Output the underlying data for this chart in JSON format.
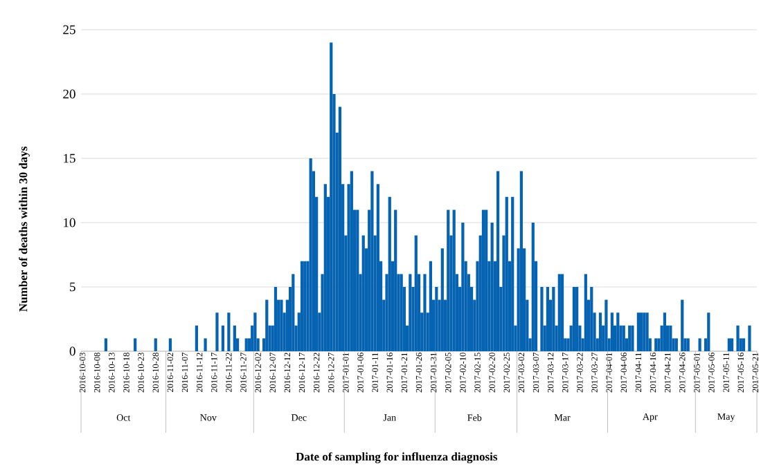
{
  "chart_data": {
    "type": "bar",
    "xlabel": "Date of sampling for influenza diagnosis",
    "ylabel": "Number of deaths within 30 days",
    "x": [
      "2016-10-03",
      "2016-10-04",
      "2016-10-05",
      "2016-10-06",
      "2016-10-07",
      "2016-10-08",
      "2016-10-09",
      "2016-10-10",
      "2016-10-11",
      "2016-10-12",
      "2016-10-13",
      "2016-10-14",
      "2016-10-15",
      "2016-10-16",
      "2016-10-17",
      "2016-10-18",
      "2016-10-19",
      "2016-10-20",
      "2016-10-21",
      "2016-10-22",
      "2016-10-23",
      "2016-10-24",
      "2016-10-25",
      "2016-10-26",
      "2016-10-27",
      "2016-10-28",
      "2016-10-29",
      "2016-10-30",
      "2016-10-31",
      "2016-11-01",
      "2016-11-02",
      "2016-11-03",
      "2016-11-04",
      "2016-11-05",
      "2016-11-06",
      "2016-11-07",
      "2016-11-08",
      "2016-11-09",
      "2016-11-10",
      "2016-11-11",
      "2016-11-12",
      "2016-11-13",
      "2016-11-14",
      "2016-11-15",
      "2016-11-16",
      "2016-11-17",
      "2016-11-18",
      "2016-11-19",
      "2016-11-20",
      "2016-11-21",
      "2016-11-22",
      "2016-11-23",
      "2016-11-24",
      "2016-11-25",
      "2016-11-26",
      "2016-11-27",
      "2016-11-28",
      "2016-11-29",
      "2016-11-30",
      "2016-12-01",
      "2016-12-02",
      "2016-12-03",
      "2016-12-04",
      "2016-12-05",
      "2016-12-06",
      "2016-12-07",
      "2016-12-08",
      "2016-12-09",
      "2016-12-10",
      "2016-12-11",
      "2016-12-12",
      "2016-12-13",
      "2016-12-14",
      "2016-12-15",
      "2016-12-16",
      "2016-12-17",
      "2016-12-18",
      "2016-12-19",
      "2016-12-20",
      "2016-12-21",
      "2016-12-22",
      "2016-12-23",
      "2016-12-24",
      "2016-12-25",
      "2016-12-26",
      "2016-12-27",
      "2016-12-28",
      "2016-12-29",
      "2016-12-30",
      "2016-12-31",
      "2017-01-01",
      "2017-01-02",
      "2017-01-03",
      "2017-01-04",
      "2017-01-05",
      "2017-01-06",
      "2017-01-07",
      "2017-01-08",
      "2017-01-09",
      "2017-01-10",
      "2017-01-11",
      "2017-01-12",
      "2017-01-13",
      "2017-01-14",
      "2017-01-15",
      "2017-01-16",
      "2017-01-17",
      "2017-01-18",
      "2017-01-19",
      "2017-01-20",
      "2017-01-21",
      "2017-01-22",
      "2017-01-23",
      "2017-01-24",
      "2017-01-25",
      "2017-01-26",
      "2017-01-27",
      "2017-01-28",
      "2017-01-29",
      "2017-01-30",
      "2017-01-31",
      "2017-02-01",
      "2017-02-02",
      "2017-02-03",
      "2017-02-04",
      "2017-02-05",
      "2017-02-06",
      "2017-02-07",
      "2017-02-08",
      "2017-02-09",
      "2017-02-10",
      "2017-02-11",
      "2017-02-12",
      "2017-02-13",
      "2017-02-14",
      "2017-02-15",
      "2017-02-16",
      "2017-02-17",
      "2017-02-18",
      "2017-02-19",
      "2017-02-20",
      "2017-02-21",
      "2017-02-22",
      "2017-02-23",
      "2017-02-24",
      "2017-02-25",
      "2017-02-26",
      "2017-02-27",
      "2017-02-28",
      "2017-03-01",
      "2017-03-02",
      "2017-03-03",
      "2017-03-04",
      "2017-03-05",
      "2017-03-06",
      "2017-03-07",
      "2017-03-08",
      "2017-03-09",
      "2017-03-10",
      "2017-03-11",
      "2017-03-12",
      "2017-03-13",
      "2017-03-14",
      "2017-03-15",
      "2017-03-16",
      "2017-03-17",
      "2017-03-18",
      "2017-03-19",
      "2017-03-20",
      "2017-03-21",
      "2017-03-22",
      "2017-03-23",
      "2017-03-24",
      "2017-03-25",
      "2017-03-26",
      "2017-03-27",
      "2017-03-28",
      "2017-03-29",
      "2017-03-30",
      "2017-03-31",
      "2017-04-01",
      "2017-04-02",
      "2017-04-03",
      "2017-04-04",
      "2017-04-05",
      "2017-04-06",
      "2017-04-07",
      "2017-04-08",
      "2017-04-09",
      "2017-04-10",
      "2017-04-11",
      "2017-04-12",
      "2017-04-13",
      "2017-04-14",
      "2017-04-15",
      "2017-04-16",
      "2017-04-17",
      "2017-04-18",
      "2017-04-19",
      "2017-04-20",
      "2017-04-21",
      "2017-04-22",
      "2017-04-23",
      "2017-04-24",
      "2017-04-25",
      "2017-04-26",
      "2017-04-27",
      "2017-04-28",
      "2017-04-29",
      "2017-04-30",
      "2017-05-01",
      "2017-05-02",
      "2017-05-03",
      "2017-05-04",
      "2017-05-05",
      "2017-05-06",
      "2017-05-07",
      "2017-05-08",
      "2017-05-09",
      "2017-05-10",
      "2017-05-11",
      "2017-05-12",
      "2017-05-13",
      "2017-05-14",
      "2017-05-15",
      "2017-05-16",
      "2017-05-17",
      "2017-05-18",
      "2017-05-19",
      "2017-05-20",
      "2017-05-21"
    ],
    "values": [
      0,
      0,
      0,
      0,
      0,
      0,
      0,
      0,
      1,
      0,
      0,
      0,
      0,
      0,
      0,
      0,
      0,
      0,
      1,
      0,
      0,
      0,
      0,
      0,
      0,
      1,
      0,
      0,
      0,
      0,
      1,
      0,
      0,
      0,
      0,
      0,
      0,
      0,
      0,
      2,
      0,
      0,
      1,
      0,
      0,
      0,
      3,
      0,
      2,
      0,
      3,
      0,
      2,
      1,
      0,
      0,
      1,
      1,
      2,
      3,
      1,
      0,
      1,
      4,
      2,
      2,
      5,
      4,
      4,
      3,
      4,
      5,
      6,
      2,
      3,
      7,
      7,
      7,
      15,
      14,
      12,
      3,
      6,
      13,
      12,
      24,
      20,
      17,
      19,
      13,
      9,
      13,
      14,
      11,
      11,
      6,
      9,
      8,
      11,
      14,
      9,
      13,
      7,
      4,
      6,
      12,
      7,
      11,
      6,
      6,
      5,
      2,
      6,
      5,
      9,
      6,
      3,
      6,
      3,
      7,
      4,
      5,
      4,
      8,
      4,
      11,
      9,
      11,
      6,
      5,
      10,
      7,
      6,
      5,
      4,
      7,
      9,
      11,
      11,
      7,
      10,
      7,
      14,
      5,
      9,
      12,
      7,
      12,
      2,
      8,
      14,
      8,
      4,
      1,
      10,
      7,
      0,
      5,
      2,
      5,
      4,
      5,
      2,
      6,
      6,
      1,
      1,
      2,
      5,
      5,
      2,
      1,
      6,
      4,
      5,
      3,
      1,
      3,
      2,
      4,
      1,
      3,
      2,
      3,
      2,
      2,
      1,
      2,
      2,
      0,
      3,
      3,
      3,
      3,
      1,
      0,
      1,
      1,
      2,
      3,
      2,
      2,
      1,
      1,
      0,
      4,
      1,
      1,
      0,
      0,
      0,
      1,
      0,
      1,
      3,
      0,
      0,
      0,
      0,
      0,
      0,
      1,
      1,
      0,
      2,
      1,
      1,
      0,
      2,
      0,
      0
    ],
    "color": "#0563b1",
    "xlim": [
      "2016-10-03",
      "2017-05-21"
    ],
    "xticks": [
      "2016-10-03",
      "2016-10-08",
      "2016-10-13",
      "2016-10-18",
      "2016-10-23",
      "2016-10-28",
      "2016-11-02",
      "2016-11-07",
      "2016-11-12",
      "2016-11-17",
      "2016-11-22",
      "2016-11-27",
      "2016-12-02",
      "2016-12-07",
      "2016-12-12",
      "2016-12-17",
      "2016-12-22",
      "2016-12-27",
      "2017-01-01",
      "2017-01-06",
      "2017-01-11",
      "2017-01-16",
      "2017-01-21",
      "2017-01-26",
      "2017-01-31",
      "2017-02-05",
      "2017-02-10",
      "2017-02-15",
      "2017-02-20",
      "2017-02-25",
      "2017-03-02",
      "2017-03-07",
      "2017-03-12",
      "2017-03-17",
      "2017-03-22",
      "2017-03-27",
      "2017-04-01",
      "2017-04-06",
      "2017-04-11",
      "2017-04-16",
      "2017-04-21",
      "2017-04-26",
      "2017-05-01",
      "2017-05-06",
      "2017-05-11",
      "2017-05-16",
      "2017-05-21"
    ],
    "x2ticks": [
      {
        "value": "2016-10-17",
        "label": "Oct"
      },
      {
        "value": "2016-11-15",
        "label": "Nov"
      },
      {
        "value": "2016-12-16",
        "label": "Dec"
      },
      {
        "value": "2017-01-16",
        "label": "Jan"
      },
      {
        "value": "2017-02-14",
        "label": "Feb"
      },
      {
        "value": "2017-03-16",
        "label": "Mar"
      },
      {
        "value": "2017-04-15",
        "label": "Apr"
      },
      {
        "value": "2017-05-11",
        "label": "May"
      }
    ],
    "ylim": [
      0,
      25
    ],
    "yticks": [
      0,
      5,
      10,
      15,
      20,
      25
    ],
    "x2lim": [
      "2016-10-03",
      "2017-05-21"
    ],
    "grid": "y"
  }
}
